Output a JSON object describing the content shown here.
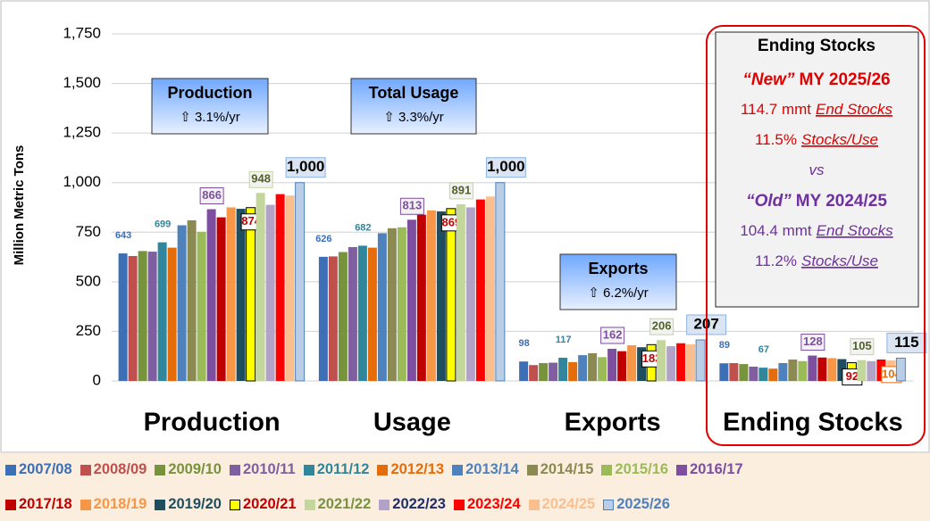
{
  "chart_data": {
    "type": "bar",
    "ylabel": "Million Metric Tons",
    "categories": [
      "Production",
      "Usage",
      "Exports",
      "Ending Stocks"
    ],
    "ylim": [
      0,
      1750
    ],
    "yticks": [
      0,
      250,
      500,
      750,
      {
        "value": 1000,
        "label": "1,000"
      },
      {
        "value": 1250,
        "label": "1,250"
      },
      {
        "value": 1500,
        "label": "1,500"
      },
      {
        "value": 1750,
        "label": "1,750"
      }
    ],
    "series": [
      {
        "name": "2007/08",
        "color": "#3d6fb6",
        "values": [
          643,
          626,
          98,
          89
        ],
        "value_labels": [
          "643",
          "626",
          "98",
          "89"
        ]
      },
      {
        "name": "2008/09",
        "color": "#c0504d",
        "values": [
          630,
          628,
          80,
          90
        ]
      },
      {
        "name": "2009/10",
        "color": "#77933c",
        "values": [
          655,
          650,
          90,
          85
        ]
      },
      {
        "name": "2010/11",
        "color": "#7f5fa0",
        "values": [
          652,
          675,
          92,
          72
        ]
      },
      {
        "name": "2011/12",
        "color": "#31869b",
        "values": [
          699,
          682,
          117,
          67
        ],
        "value_labels": [
          "699",
          "682",
          "117",
          "67"
        ]
      },
      {
        "name": "2012/13",
        "color": "#e46c0a",
        "values": [
          672,
          672,
          95,
          62
        ]
      },
      {
        "name": "2013/14",
        "color": "#4f81bd",
        "values": [
          785,
          745,
          130,
          90
        ]
      },
      {
        "name": "2014/15",
        "color": "#8b8a52",
        "values": [
          810,
          770,
          140,
          108
        ]
      },
      {
        "name": "2015/16",
        "color": "#9bbb59",
        "values": [
          752,
          775,
          120,
          100
        ]
      },
      {
        "name": "2016/17",
        "color": "#7d4f9e",
        "values": [
          866,
          813,
          162,
          128
        ],
        "value_labels": [
          "866",
          "813",
          "162",
          "128"
        ]
      },
      {
        "name": "2017/18",
        "color": "#c00000",
        "values": [
          825,
          838,
          150,
          118
        ]
      },
      {
        "name": "2018/19",
        "color": "#f79646",
        "values": [
          875,
          860,
          180,
          115
        ]
      },
      {
        "name": "2019/20",
        "color": "#1f4e5f",
        "values": [
          868,
          855,
          170,
          110
        ]
      },
      {
        "name": "2020/21",
        "color": "#ffff00",
        "values": [
          874,
          869,
          183,
          92
        ],
        "value_labels": [
          "874",
          "869",
          "183",
          "92"
        ]
      },
      {
        "name": "2021/22",
        "color": "#c3d69b",
        "values": [
          948,
          891,
          206,
          105
        ],
        "value_labels": [
          "948",
          "891",
          "206",
          "105"
        ]
      },
      {
        "name": "2022/23",
        "color": "#b3a2c7",
        "values": [
          888,
          875,
          175,
          100
        ]
      },
      {
        "name": "2023/24",
        "color": "#ff0000",
        "values": [
          942,
          915,
          190,
          108
        ]
      },
      {
        "name": "2024/25",
        "color": "#fabf8f",
        "values": [
          935,
          930,
          185,
          104
        ],
        "value_labels": [
          null,
          null,
          null,
          "104"
        ]
      },
      {
        "name": "2025/26",
        "color": "#b9cde5",
        "values": [
          1000,
          1000,
          207,
          115
        ],
        "value_labels": [
          "1,000",
          "1,000",
          "207",
          "115"
        ]
      }
    ],
    "annotations": [
      [
        "Production",
        "⇧ 3.1%/yr"
      ],
      [
        "Total Usage",
        "⇧ 3.3%/yr"
      ],
      [
        "Exports",
        "⇧ 6.2%/yr"
      ]
    ],
    "stocks_box": {
      "title": "Ending Stocks",
      "lines": [
        [
          "“New”",
          "MY 2025/26"
        ],
        [
          "114.7 mmt",
          "End Stocks"
        ],
        [
          "11.5%",
          "Stocks/Use"
        ],
        [
          "vs"
        ],
        [
          "“Old”",
          "MY 2024/25"
        ],
        [
          "104.4 mmt",
          "End Stocks"
        ],
        [
          "11.2%",
          "Stocks/Use"
        ]
      ]
    }
  }
}
